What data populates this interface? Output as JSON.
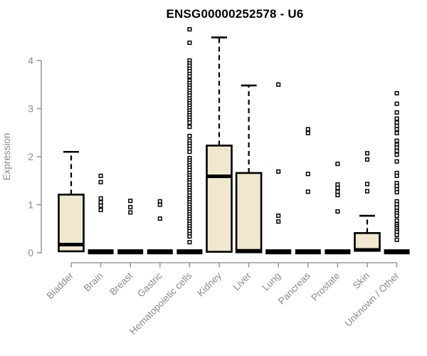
{
  "title": "ENSG00000252578 - U6",
  "colors": {
    "box_fill": "#EFE8CE",
    "box_stroke": "#000000",
    "median": "#000000",
    "outlier_fill": "#FFFFFF",
    "axis": "#9B9B9B",
    "axis_label": "#8A8A8A",
    "title_color": "#000000",
    "background": "#FFFFFF"
  },
  "chart_data": {
    "type": "boxplot",
    "title": "ENSG00000252578 - U6",
    "xlabel": "",
    "ylabel": "Expression",
    "ylim": [
      -0.2,
      4.7
    ],
    "yticks": [
      0,
      1,
      2,
      3,
      4
    ],
    "grid": false,
    "legend": "none",
    "categories": [
      "Bladder",
      "Brain",
      "Breast",
      "Gastric",
      "Hematopoietic cells",
      "Kidney",
      "Liver",
      "Lung",
      "Pancreas",
      "Prostate",
      "Skin",
      "Unknown / Other"
    ],
    "series": [
      {
        "label": "Bladder",
        "collapsed": false,
        "q1": 0.03,
        "median": 0.17,
        "q3": 1.21,
        "whisker_low": 0.03,
        "whisker_high": 2.1,
        "outliers": []
      },
      {
        "label": "Brain",
        "collapsed": true,
        "q1": 0,
        "median": 0.02,
        "q3": 0.04,
        "whisker_low": 0,
        "whisker_high": 0.04,
        "outliers": [
          1.6,
          1.47,
          1.13,
          1.05,
          0.98,
          0.89
        ]
      },
      {
        "label": "Breast",
        "collapsed": true,
        "q1": 0,
        "median": 0.02,
        "q3": 0.04,
        "whisker_low": 0,
        "whisker_high": 0.04,
        "outliers": [
          1.08,
          0.95,
          0.84
        ]
      },
      {
        "label": "Gastric",
        "collapsed": true,
        "q1": 0,
        "median": 0.02,
        "q3": 0.04,
        "whisker_low": 0,
        "whisker_high": 0.04,
        "outliers": [
          1.07,
          1.0,
          0.71
        ]
      },
      {
        "label": "Hematopoietic cells",
        "collapsed": true,
        "q1": 0,
        "median": 0.02,
        "q3": 0.04,
        "whisker_low": 0,
        "whisker_high": 0.04,
        "outliers": [
          4.65,
          4.37,
          4.0,
          3.94,
          3.89,
          3.83,
          3.78,
          3.72,
          3.67,
          3.58,
          3.53,
          3.48,
          3.43,
          3.37,
          3.32,
          3.27,
          3.21,
          3.16,
          3.11,
          3.06,
          3.01,
          2.96,
          2.91,
          2.86,
          2.81,
          2.76,
          2.71,
          2.62,
          2.43,
          2.33,
          2.27,
          2.22,
          2.16,
          2.1,
          1.97,
          1.92,
          1.87,
          1.82,
          1.77,
          1.72,
          1.66,
          1.61,
          1.56,
          1.51,
          1.46,
          1.4,
          1.35,
          1.3,
          1.25,
          1.19,
          1.14,
          1.1,
          1.05,
          1.0,
          0.95,
          0.9,
          0.85,
          0.8,
          0.75,
          0.7,
          0.65,
          0.6,
          0.55,
          0.5,
          0.45,
          0.39,
          0.34,
          0.22
        ]
      },
      {
        "label": "Kidney",
        "collapsed": false,
        "q1": 0.02,
        "median": 1.59,
        "q3": 2.23,
        "whisker_low": 0.02,
        "whisker_high": 4.48,
        "outliers": []
      },
      {
        "label": "Liver",
        "collapsed": false,
        "q1": 0.01,
        "median": 0.04,
        "q3": 1.66,
        "whisker_low": 0.01,
        "whisker_high": 3.48,
        "outliers": []
      },
      {
        "label": "Lung",
        "collapsed": true,
        "q1": 0,
        "median": 0.02,
        "q3": 0.04,
        "whisker_low": 0,
        "whisker_high": 0.04,
        "outliers": [
          3.5,
          1.69,
          0.77,
          0.65
        ]
      },
      {
        "label": "Pancreas",
        "collapsed": true,
        "q1": 0,
        "median": 0.02,
        "q3": 0.04,
        "whisker_low": 0,
        "whisker_high": 0.04,
        "outliers": [
          2.57,
          2.49,
          1.64,
          1.27
        ]
      },
      {
        "label": "Prostate",
        "collapsed": true,
        "q1": 0,
        "median": 0.02,
        "q3": 0.04,
        "whisker_low": 0,
        "whisker_high": 0.04,
        "outliers": [
          1.85,
          1.42,
          1.35,
          1.27,
          1.2,
          0.86
        ]
      },
      {
        "label": "Skin",
        "collapsed": false,
        "q1": 0.04,
        "median": 0.06,
        "q3": 0.41,
        "whisker_low": 0.04,
        "whisker_high": 0.77,
        "outliers": [
          2.07,
          1.94,
          1.43,
          1.28
        ]
      },
      {
        "label": "Unknown / Other",
        "collapsed": true,
        "q1": 0,
        "median": 0.02,
        "q3": 0.04,
        "whisker_low": 0,
        "whisker_high": 0.04,
        "outliers": [
          3.32,
          3.1,
          2.92,
          2.79,
          2.71,
          2.64,
          2.57,
          2.49,
          2.33,
          2.25,
          2.19,
          2.12,
          2.04,
          1.9,
          1.66,
          1.6,
          1.45,
          1.39,
          1.32,
          1.26,
          1.07,
          1.01,
          0.94,
          0.87,
          0.82,
          0.77,
          0.67,
          0.59,
          0.55,
          0.51,
          0.47,
          0.43,
          0.37,
          0.27
        ]
      }
    ]
  }
}
